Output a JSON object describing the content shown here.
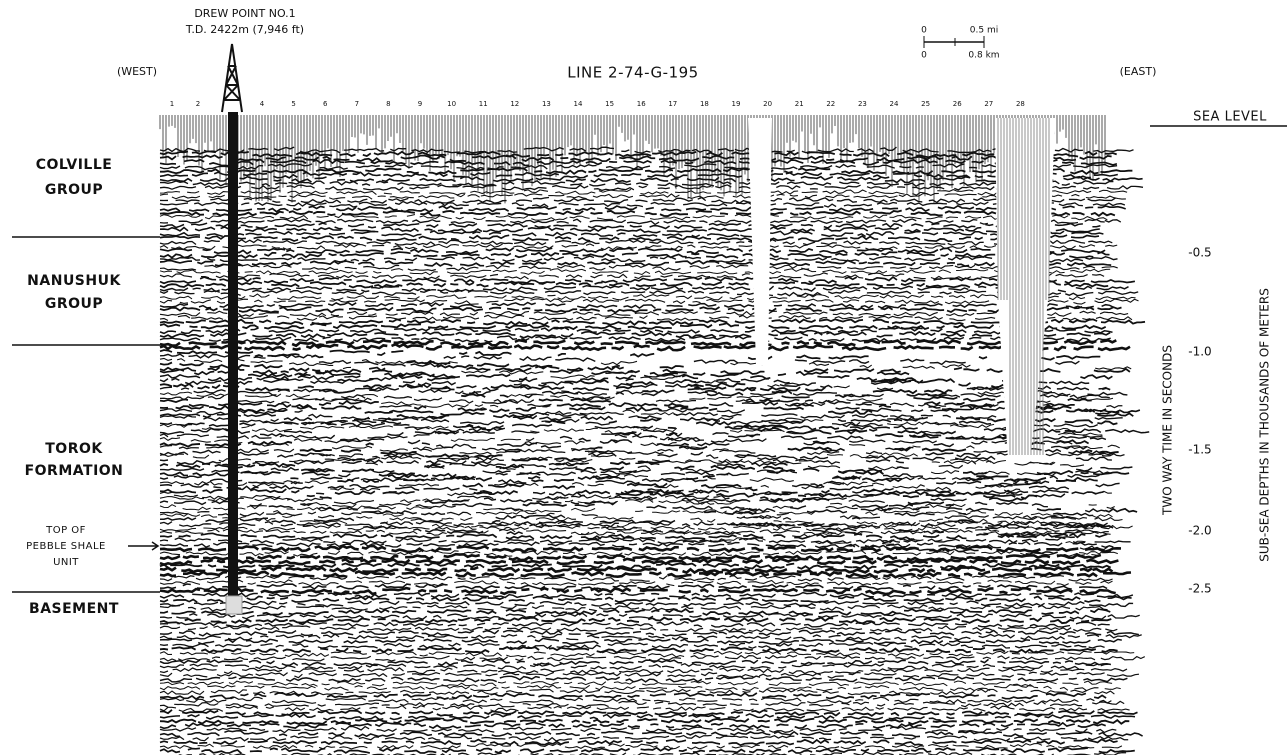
{
  "header": {
    "well_name": "DREW POINT NO.1",
    "well_td": "T.D. 2422m (7,946 ft)",
    "west": "(WEST)",
    "line": "LINE 2-74-G-195",
    "east": "(EAST)"
  },
  "scale": {
    "mi_zero": "0",
    "mi": "0.5 mi",
    "km_zero": "0",
    "km": "0.8 km"
  },
  "shotpoints": [
    "1",
    "2",
    "4",
    "5",
    "6",
    "7",
    "8",
    "9",
    "10",
    "11",
    "12",
    "13",
    "14",
    "15",
    "16",
    "17",
    "18",
    "19",
    "20",
    "21",
    "22",
    "23",
    "24",
    "25",
    "26",
    "27",
    "28"
  ],
  "sea_level": "SEA LEVEL",
  "formations": [
    {
      "lines": [
        "COLVILLE",
        "GROUP"
      ]
    },
    {
      "lines": [
        "NANUSHUK",
        "GROUP"
      ]
    },
    {
      "lines": [
        "TOROK",
        "FORMATION"
      ]
    },
    {
      "lines": [
        "TOP OF",
        "PEBBLE SHALE",
        "UNIT"
      ]
    },
    {
      "lines": [
        "BASEMENT"
      ]
    }
  ],
  "time_axis_title": "TWO WAY TIME IN SECONDS",
  "depth_axis_title": "SUB-SEA DEPTHS IN THOUSANDS OF METERS",
  "depths": [
    "-0.5",
    "-1.0",
    "-1.5",
    "-2.0",
    "-2.5"
  ]
}
